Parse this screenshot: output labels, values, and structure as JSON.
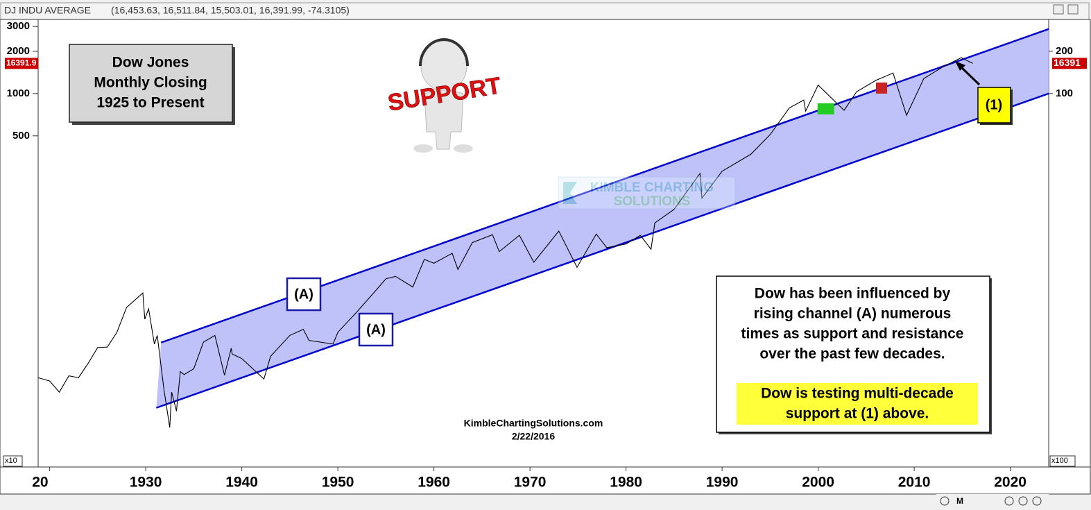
{
  "chart_data": {
    "type": "line",
    "header": "(16,453.63, 16,511.84, 15,503.01, 16,391.99, -74.3105)",
    "log_scale": true,
    "xlim": [
      1918.8,
      2024
    ],
    "xticks": [
      {
        "value": 1920,
        "label": "20"
      },
      1930,
      1940,
      1950,
      1960,
      1970,
      1980,
      1990,
      2000,
      2010,
      2020
    ],
    "ylim": [
      22,
      33700
    ],
    "yticks": [
      {
        "value": 30000,
        "label": "3000"
      },
      {
        "value": 20000,
        "label": "2000"
      },
      {
        "value": 10000,
        "label": "1000"
      },
      {
        "value": 5000,
        "label": "500"
      }
    ],
    "y_multiplier": "x10",
    "y2ticks": [
      {
        "value": 20000,
        "label": "200"
      },
      {
        "value": 10000,
        "label": "100"
      }
    ],
    "y2_multiplier": "x100",
    "last_price_labels": [
      "16391.9",
      "16391"
    ],
    "series": [
      {
        "name": "DJ INDU AVERAGE",
        "color": "#000000",
        "x": [
          1918.8,
          1920,
          1921,
          1922,
          1923,
          1924,
          1925,
          1926,
          1927,
          1928,
          1929.7,
          1929.9,
          1930.3,
          1930.9,
          1931.2,
          1931.9,
          1932.5,
          1932.7,
          1933.2,
          1933.6,
          1934,
          1935,
          1936,
          1937.2,
          1938.2,
          1938.9,
          1939,
          1940,
          1942.3,
          1943,
          1945,
          1946.4,
          1947,
          1949.5,
          1950,
          1952,
          1954,
          1955,
          1956,
          1957.8,
          1959,
          1960,
          1961.9,
          1962.5,
          1964,
          1966.1,
          1966.8,
          1968.9,
          1970.4,
          1973,
          1974.9,
          1976.9,
          1978,
          1980,
          1981.5,
          1982.6,
          1983,
          1985,
          1987.7,
          1987.9,
          1990,
          1993,
          1995,
          1997,
          1998.5,
          1998.7,
          2000,
          2002.7,
          2004,
          2006,
          2007.8,
          2009.2,
          2011,
          2013,
          2014.9,
          2016.1
        ],
        "values": [
          95,
          90,
          75,
          98,
          95,
          120,
          156,
          157,
          200,
          300,
          381,
          248,
          294,
          165,
          190,
          78,
          42,
          75,
          55,
          105,
          100,
          110,
          170,
          190,
          99,
          154,
          140,
          130,
          93,
          135,
          190,
          210,
          175,
          165,
          200,
          280,
          400,
          480,
          500,
          420,
          660,
          620,
          730,
          560,
          870,
          990,
          750,
          980,
          630,
          1050,
          580,
          1000,
          800,
          850,
          980,
          780,
          1200,
          1500,
          2700,
          1800,
          2800,
          3700,
          5100,
          7900,
          9000,
          7500,
          11500,
          7600,
          10300,
          12400,
          14000,
          7000,
          12800,
          15500,
          18000,
          16392
        ]
      }
    ],
    "channel": {
      "color": "#0000cc",
      "fill": "#b4b6f8",
      "upper": {
        "x": [
          1931.6,
          2024
        ],
        "values": [
          169,
          28800
        ]
      },
      "lower": {
        "x": [
          1931.1,
          2024
        ],
        "values": [
          58,
          10000
        ]
      }
    },
    "markers": [
      {
        "x": 2000.8,
        "value": 7790,
        "color": "#22cc22"
      },
      {
        "x": 2006.6,
        "value": 10950,
        "color": "#cc2222"
      }
    ],
    "title_box": [
      "Dow Jones",
      "Monthly Closing",
      "1925 to Present"
    ],
    "support_image_text": "SUPPORT",
    "watermark": [
      "KIMBLE CHARTING",
      "SOLUTIONS"
    ],
    "channel_labels": [
      "(A)",
      "(A)"
    ],
    "point_label": "(1)",
    "note": [
      "Dow has been influenced by",
      "rising channel (A) numerous",
      "times as support and resistance",
      "over the past few decades."
    ],
    "highlight": [
      "Dow is testing multi-decade",
      "support at (1) above."
    ],
    "source": "KimbleChartingSolutions.com",
    "date": "2/22/2016",
    "toolbar_label": "M"
  }
}
